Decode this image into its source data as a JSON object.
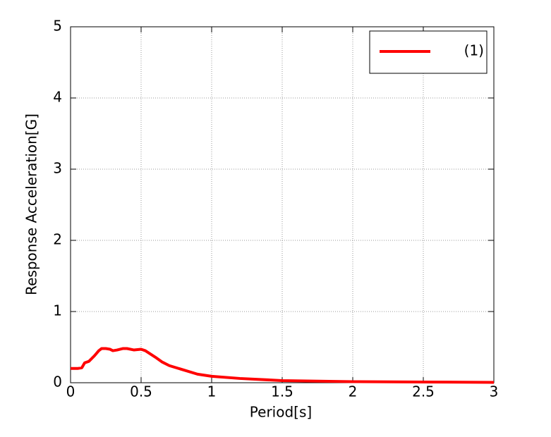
{
  "chart_data": {
    "type": "line",
    "xlabel": "Period[s]",
    "ylabel": "Response Acceleration[G]",
    "x": [
      0,
      0.05,
      0.08,
      0.1,
      0.13,
      0.17,
      0.2,
      0.22,
      0.25,
      0.28,
      0.3,
      0.33,
      0.37,
      0.4,
      0.45,
      0.5,
      0.53,
      0.6,
      0.65,
      0.7,
      0.8,
      0.9,
      1.0,
      1.2,
      1.5,
      2.0,
      2.5,
      3.0
    ],
    "series": [
      {
        "name": "(1)",
        "color": "#ff0000",
        "values": [
          0.2,
          0.2,
          0.21,
          0.28,
          0.3,
          0.38,
          0.45,
          0.48,
          0.48,
          0.47,
          0.45,
          0.46,
          0.48,
          0.48,
          0.46,
          0.47,
          0.45,
          0.36,
          0.29,
          0.24,
          0.18,
          0.12,
          0.09,
          0.06,
          0.03,
          0.015,
          0.01,
          0.005
        ]
      }
    ],
    "xlim": [
      0,
      3
    ],
    "xticks": [
      0,
      0.5,
      1,
      1.5,
      2,
      2.5,
      3
    ],
    "ylim": [
      0,
      5
    ],
    "yticks": [
      0,
      1,
      2,
      3,
      4,
      5
    ],
    "grid": true,
    "legend": "upper right"
  }
}
